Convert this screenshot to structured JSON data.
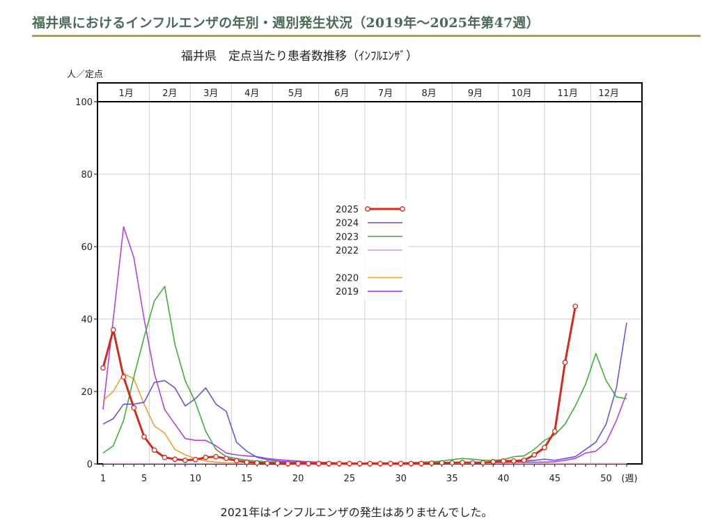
{
  "page": {
    "title": "福井県におけるインフルエンザの年別・週別発生状況（2019年〜2025年第47週）",
    "footnote": "2021年はインフルエンザの発生はありませんでした。"
  },
  "chart_data": {
    "type": "line",
    "title": "福井県　定点当たり患者数推移（ｲﾝﾌﾙｴﾝｻﾞ）",
    "ylabel": "人／定点",
    "xlabel": "(週)",
    "xlim": [
      1,
      52
    ],
    "ylim": [
      0,
      100
    ],
    "y_ticks": [
      0,
      20,
      40,
      60,
      80,
      100
    ],
    "x_ticks": [
      1,
      5,
      10,
      15,
      20,
      25,
      30,
      35,
      40,
      45,
      50
    ],
    "months": [
      {
        "label": "1月",
        "start": 1,
        "end": 5.5
      },
      {
        "label": "2月",
        "start": 5.5,
        "end": 9.5
      },
      {
        "label": "3月",
        "start": 9.5,
        "end": 13.5
      },
      {
        "label": "4月",
        "start": 13.5,
        "end": 17.5
      },
      {
        "label": "5月",
        "start": 17.5,
        "end": 22
      },
      {
        "label": "6月",
        "start": 22,
        "end": 26.5
      },
      {
        "label": "7月",
        "start": 26.5,
        "end": 30.5
      },
      {
        "label": "8月",
        "start": 30.5,
        "end": 35
      },
      {
        "label": "9月",
        "start": 35,
        "end": 39.5
      },
      {
        "label": "10月",
        "start": 39.5,
        "end": 44
      },
      {
        "label": "11月",
        "start": 44,
        "end": 48.5
      },
      {
        "label": "12月",
        "start": 48.5,
        "end": 52
      }
    ],
    "grid": true,
    "legend": "center",
    "series": [
      {
        "name": "2025",
        "color": "#d42a1e",
        "markers": true,
        "x": [
          1,
          2,
          3,
          4,
          5,
          6,
          7,
          8,
          9,
          10,
          11,
          12,
          13,
          14,
          15,
          16,
          17,
          18,
          19,
          20,
          21,
          22,
          23,
          24,
          25,
          26,
          27,
          28,
          29,
          30,
          31,
          32,
          33,
          34,
          35,
          36,
          37,
          38,
          39,
          40,
          41,
          42,
          43,
          44,
          45,
          46,
          47
        ],
        "values": [
          26.5,
          37,
          24,
          15.5,
          7.5,
          3.8,
          1.8,
          1.3,
          1.0,
          1.2,
          1.8,
          2.0,
          1.5,
          0.9,
          0.5,
          0.3,
          0.2,
          0.2,
          0.1,
          0.1,
          0.1,
          0.1,
          0.1,
          0.1,
          0.1,
          0.1,
          0.1,
          0.1,
          0.1,
          0.1,
          0.1,
          0.1,
          0.2,
          0.3,
          0.3,
          0.4,
          0.3,
          0.3,
          0.6,
          0.8,
          0.8,
          1.0,
          2.5,
          4.5,
          9.0,
          28.0,
          43.5
        ]
      },
      {
        "name": "2024",
        "color": "#5a5ae0",
        "markers": false,
        "x": [
          1,
          2,
          3,
          4,
          5,
          6,
          7,
          8,
          9,
          10,
          11,
          12,
          13,
          14,
          15,
          16,
          17,
          18,
          19,
          20,
          21,
          22,
          23,
          24,
          25,
          26,
          27,
          28,
          29,
          30,
          31,
          32,
          33,
          34,
          35,
          36,
          37,
          38,
          39,
          40,
          41,
          42,
          43,
          44,
          45,
          46,
          47,
          48,
          49,
          50,
          51,
          52
        ],
        "values": [
          11,
          12.5,
          16.5,
          16.5,
          17,
          22.5,
          23,
          21,
          16,
          18,
          21,
          16.5,
          14.5,
          6,
          3.5,
          1.8,
          1.2,
          0.8,
          0.6,
          0.5,
          0.4,
          0.3,
          0.3,
          0.2,
          0.2,
          0.2,
          0.2,
          0.2,
          0.2,
          0.2,
          0.2,
          0.2,
          0.3,
          0.3,
          0.3,
          0.4,
          0.5,
          0.5,
          0.5,
          0.6,
          0.7,
          0.8,
          1.0,
          1.3,
          1.0,
          1.5,
          2,
          4,
          6,
          11,
          21,
          39
        ]
      },
      {
        "name": "2023",
        "color": "#3fae3a",
        "markers": false,
        "x": [
          1,
          2,
          3,
          4,
          5,
          6,
          7,
          8,
          9,
          10,
          11,
          12,
          13,
          14,
          15,
          16,
          17,
          18,
          19,
          20,
          21,
          22,
          23,
          24,
          25,
          26,
          27,
          28,
          29,
          30,
          31,
          32,
          33,
          34,
          35,
          36,
          37,
          38,
          39,
          40,
          41,
          42,
          43,
          44,
          45,
          46,
          47,
          48,
          49,
          50,
          51,
          52
        ],
        "values": [
          3,
          5,
          12,
          24,
          35,
          45,
          49,
          33,
          23,
          17,
          9,
          4,
          2,
          1.5,
          1,
          0.8,
          0.6,
          0.5,
          0.4,
          0.3,
          0.3,
          0.2,
          0.2,
          0.2,
          0.2,
          0.2,
          0.3,
          0.3,
          0.3,
          0.3,
          0.4,
          0.5,
          0.6,
          0.8,
          1.2,
          1.5,
          1.3,
          1.0,
          1.0,
          1.2,
          2.0,
          2.2,
          4.0,
          6.5,
          8,
          11,
          16,
          22,
          30.5,
          23,
          18.5,
          18
        ]
      },
      {
        "name": "2022",
        "color": "#e89ae0",
        "markers": false,
        "x": [
          1,
          5,
          10,
          15,
          20,
          25,
          30,
          35,
          40,
          45,
          50,
          52
        ],
        "values": [
          0.1,
          0.1,
          0.1,
          0.1,
          0.1,
          0.1,
          0.1,
          0.1,
          0.1,
          0.1,
          0.1,
          0.1
        ]
      },
      {
        "name": "2020",
        "color": "#f0a030",
        "markers": false,
        "x": [
          1,
          2,
          3,
          4,
          5,
          6,
          7,
          8,
          9,
          10,
          11,
          12,
          13,
          14,
          15,
          16,
          17,
          18,
          19,
          20,
          25,
          30,
          35,
          40,
          45,
          50,
          52
        ],
        "values": [
          17.5,
          20,
          25,
          23.5,
          16.5,
          10.5,
          8.5,
          4,
          2.5,
          1.5,
          0.8,
          0.5,
          0.3,
          0.2,
          0.1,
          0.1,
          0.1,
          0.1,
          0.1,
          0.1,
          0.1,
          0.1,
          0.1,
          0.1,
          0.1,
          0.1,
          0.1
        ]
      },
      {
        "name": "2019",
        "color": "#b040e0",
        "markers": false,
        "x": [
          1,
          2,
          3,
          4,
          5,
          6,
          7,
          8,
          9,
          10,
          11,
          12,
          13,
          14,
          15,
          16,
          17,
          18,
          19,
          20,
          21,
          22,
          23,
          24,
          25,
          26,
          27,
          28,
          29,
          30,
          31,
          32,
          33,
          34,
          35,
          36,
          37,
          38,
          39,
          40,
          41,
          42,
          43,
          44,
          45,
          46,
          47,
          48,
          49,
          50,
          51,
          52
        ],
        "values": [
          15,
          40,
          65.5,
          57,
          40,
          25,
          15,
          11,
          7,
          6.5,
          6.5,
          5,
          3,
          2.5,
          2.2,
          2,
          1.5,
          1.2,
          1.0,
          0.8,
          0.6,
          0.5,
          0.4,
          0.3,
          0.3,
          0.2,
          0.2,
          0.2,
          0.2,
          0.2,
          0.2,
          0.2,
          0.2,
          0.2,
          0.2,
          0.3,
          0.3,
          0.3,
          0.3,
          0.4,
          0.5,
          0.5,
          0.5,
          0.5,
          0.6,
          1.0,
          1.5,
          3.0,
          3.5,
          6.0,
          12,
          19.5
        ]
      }
    ],
    "legend_order": [
      "2025",
      "2024",
      "2023",
      "2022",
      "",
      "2020",
      "2019"
    ]
  }
}
